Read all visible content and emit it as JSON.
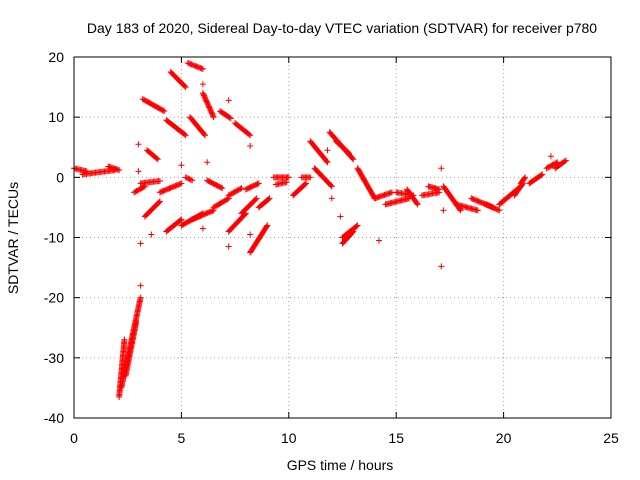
{
  "chart_data": {
    "type": "scatter",
    "title": "Day 183 of 2020, Sidereal Day-to-day VTEC variation (SDTVAR) for receiver p780",
    "xlabel": "GPS time / hours",
    "ylabel": "SDTVAR / TECUs",
    "xlim": [
      0,
      25
    ],
    "ylim": [
      -40,
      20
    ],
    "xticks": [
      0,
      5,
      10,
      15,
      20,
      25
    ],
    "yticks": [
      -40,
      -30,
      -20,
      -10,
      0,
      10,
      20
    ],
    "xtick_labels": [
      "0",
      "5",
      "10",
      "15",
      "20",
      "25"
    ],
    "ytick_labels": [
      "-40",
      "-30",
      "-20",
      "-10",
      "0",
      "10",
      "20"
    ],
    "grid": true,
    "marker": "+",
    "color": "#ff0000",
    "segments": [
      {
        "x0": 0.0,
        "y0": 1.5,
        "x1": 0.6,
        "y1": 1.0
      },
      {
        "x0": 0.4,
        "y0": 0.5,
        "x1": 1.9,
        "y1": 1.2
      },
      {
        "x0": 1.6,
        "y0": 1.8,
        "x1": 2.1,
        "y1": 1.2
      },
      {
        "x0": 2.1,
        "y0": -36.5,
        "x1": 2.35,
        "y1": -27.0
      },
      {
        "x0": 2.2,
        "y0": -35.0,
        "x1": 3.1,
        "y1": -20.0
      },
      {
        "x0": 2.4,
        "y0": -33.0,
        "x1": 2.9,
        "y1": -24.0
      },
      {
        "x0": 2.8,
        "y0": -2.5,
        "x1": 3.3,
        "y1": -1.5
      },
      {
        "x0": 3.1,
        "y0": -1.0,
        "x1": 4.0,
        "y1": -0.6
      },
      {
        "x0": 3.3,
        "y0": -6.5,
        "x1": 4.0,
        "y1": -4.0
      },
      {
        "x0": 3.4,
        "y0": 4.5,
        "x1": 3.9,
        "y1": 3.0
      },
      {
        "x0": 3.2,
        "y0": 13.0,
        "x1": 4.2,
        "y1": 11.0
      },
      {
        "x0": 4.0,
        "y0": -2.5,
        "x1": 5.0,
        "y1": -1.0
      },
      {
        "x0": 4.3,
        "y0": -9.0,
        "x1": 5.0,
        "y1": -7.0
      },
      {
        "x0": 4.3,
        "y0": 9.5,
        "x1": 5.2,
        "y1": 7.0
      },
      {
        "x0": 4.5,
        "y0": 17.5,
        "x1": 5.2,
        "y1": 15.0
      },
      {
        "x0": 5.0,
        "y0": -8.0,
        "x1": 6.0,
        "y1": -6.0
      },
      {
        "x0": 5.5,
        "y0": -7.0,
        "x1": 6.5,
        "y1": -5.5
      },
      {
        "x0": 5.2,
        "y0": 0.0,
        "x1": 5.5,
        "y1": -0.5
      },
      {
        "x0": 5.4,
        "y0": 10.0,
        "x1": 6.1,
        "y1": 7.0
      },
      {
        "x0": 5.3,
        "y0": 19.0,
        "x1": 6.0,
        "y1": 18.0
      },
      {
        "x0": 6.0,
        "y0": 14.0,
        "x1": 6.5,
        "y1": 10.0
      },
      {
        "x0": 6.2,
        "y0": -0.5,
        "x1": 6.9,
        "y1": -1.8
      },
      {
        "x0": 6.5,
        "y0": -5.0,
        "x1": 7.2,
        "y1": -3.5
      },
      {
        "x0": 6.8,
        "y0": 11.0,
        "x1": 7.3,
        "y1": 9.8
      },
      {
        "x0": 7.2,
        "y0": -9.0,
        "x1": 8.0,
        "y1": -6.0
      },
      {
        "x0": 7.2,
        "y0": -3.0,
        "x1": 7.8,
        "y1": -1.8
      },
      {
        "x0": 7.5,
        "y0": 9.0,
        "x1": 8.2,
        "y1": 7.0
      },
      {
        "x0": 7.8,
        "y0": -6.0,
        "x1": 8.5,
        "y1": -3.5
      },
      {
        "x0": 8.0,
        "y0": -2.0,
        "x1": 8.6,
        "y1": -1.0
      },
      {
        "x0": 8.2,
        "y0": -12.5,
        "x1": 9.0,
        "y1": -8.0
      },
      {
        "x0": 8.6,
        "y0": -5.0,
        "x1": 9.1,
        "y1": -3.5
      },
      {
        "x0": 9.3,
        "y0": 0.0,
        "x1": 10.0,
        "y1": 0.0
      },
      {
        "x0": 9.4,
        "y0": -1.2,
        "x1": 9.9,
        "y1": -0.8
      },
      {
        "x0": 10.2,
        "y0": -3.0,
        "x1": 10.8,
        "y1": -1.0
      },
      {
        "x0": 10.6,
        "y0": 0.0,
        "x1": 11.0,
        "y1": 0.0
      },
      {
        "x0": 11.0,
        "y0": 6.0,
        "x1": 11.8,
        "y1": 2.5
      },
      {
        "x0": 11.2,
        "y0": 1.5,
        "x1": 12.0,
        "y1": -1.5
      },
      {
        "x0": 11.9,
        "y0": 7.5,
        "x1": 13.0,
        "y1": 3.0
      },
      {
        "x0": 12.2,
        "y0": 6.0,
        "x1": 12.8,
        "y1": 4.0
      },
      {
        "x0": 12.5,
        "y0": -10.0,
        "x1": 13.2,
        "y1": -8.0
      },
      {
        "x0": 12.5,
        "y0": -11.0,
        "x1": 13.0,
        "y1": -9.0
      },
      {
        "x0": 13.2,
        "y0": 1.5,
        "x1": 14.0,
        "y1": -3.5
      },
      {
        "x0": 14.0,
        "y0": -3.5,
        "x1": 14.8,
        "y1": -2.5
      },
      {
        "x0": 14.5,
        "y0": -4.5,
        "x1": 15.6,
        "y1": -3.5
      },
      {
        "x0": 15.0,
        "y0": -2.5,
        "x1": 15.8,
        "y1": -3.0
      },
      {
        "x0": 15.5,
        "y0": -2.0,
        "x1": 16.0,
        "y1": -4.5
      },
      {
        "x0": 16.2,
        "y0": -3.0,
        "x1": 17.0,
        "y1": -2.5
      },
      {
        "x0": 16.5,
        "y0": -1.5,
        "x1": 17.0,
        "y1": -2.0
      },
      {
        "x0": 17.2,
        "y0": -1.5,
        "x1": 18.0,
        "y1": -5.5
      },
      {
        "x0": 17.8,
        "y0": -4.5,
        "x1": 18.8,
        "y1": -5.5
      },
      {
        "x0": 18.5,
        "y0": -3.5,
        "x1": 19.5,
        "y1": -5.0
      },
      {
        "x0": 19.2,
        "y0": -4.5,
        "x1": 19.8,
        "y1": -5.5
      },
      {
        "x0": 19.8,
        "y0": -4.5,
        "x1": 20.8,
        "y1": -1.5
      },
      {
        "x0": 20.5,
        "y0": -3.0,
        "x1": 20.9,
        "y1": -1.0
      },
      {
        "x0": 20.8,
        "y0": -1.0,
        "x1": 21.0,
        "y1": 0.0
      },
      {
        "x0": 21.2,
        "y0": -1.0,
        "x1": 21.8,
        "y1": 0.5
      },
      {
        "x0": 22.0,
        "y0": 1.5,
        "x1": 22.5,
        "y1": 2.5
      },
      {
        "x0": 22.4,
        "y0": 1.5,
        "x1": 22.9,
        "y1": 2.8
      }
    ],
    "outliers": [
      {
        "x": 3.1,
        "y": -11.0
      },
      {
        "x": 3.1,
        "y": -18.0
      },
      {
        "x": 3.0,
        "y": 5.5
      },
      {
        "x": 3.0,
        "y": 1.0
      },
      {
        "x": 3.6,
        "y": -9.5
      },
      {
        "x": 5.0,
        "y": 2.0
      },
      {
        "x": 6.0,
        "y": -8.5
      },
      {
        "x": 6.2,
        "y": 2.5
      },
      {
        "x": 6.0,
        "y": 15.5
      },
      {
        "x": 7.2,
        "y": 12.8
      },
      {
        "x": 7.2,
        "y": -11.5
      },
      {
        "x": 8.2,
        "y": 5.2
      },
      {
        "x": 8.2,
        "y": -9.5
      },
      {
        "x": 10.8,
        "y": -1.0
      },
      {
        "x": 11.8,
        "y": 4.5
      },
      {
        "x": 12.4,
        "y": -6.5
      },
      {
        "x": 12.0,
        "y": -3.5
      },
      {
        "x": 14.2,
        "y": -10.5
      },
      {
        "x": 17.1,
        "y": 1.5
      },
      {
        "x": 17.1,
        "y": -14.8
      },
      {
        "x": 17.2,
        "y": -5.5
      },
      {
        "x": 22.2,
        "y": 3.5
      }
    ]
  }
}
